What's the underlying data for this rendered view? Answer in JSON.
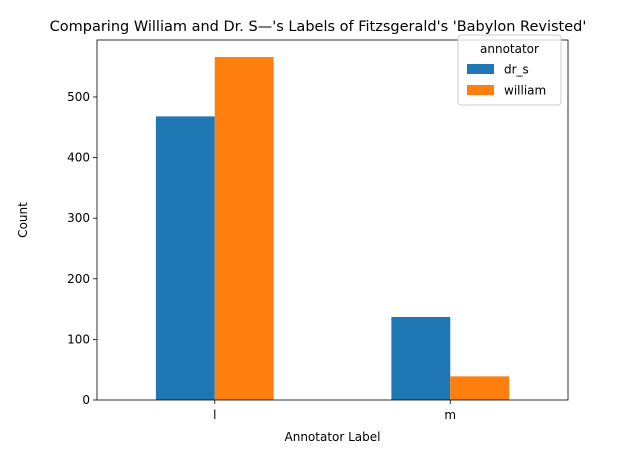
{
  "chart_data": {
    "type": "bar",
    "title": "Comparing William and Dr. S—'s Labels of Fitzsgerald's 'Babylon Revisted'",
    "xlabel": "Annotator Label",
    "ylabel": "Count",
    "categories": [
      "l",
      "m"
    ],
    "series": [
      {
        "name": "dr_s",
        "color": "#1f77b4",
        "values": [
          468,
          137
        ]
      },
      {
        "name": "william",
        "color": "#ff7f0e",
        "values": [
          566,
          39
        ]
      }
    ],
    "ylim": [
      0,
      594
    ],
    "yticks": [
      0,
      100,
      200,
      300,
      400,
      500
    ],
    "grid": false,
    "legend": {
      "title": "annotator",
      "placement": "top-right"
    }
  }
}
